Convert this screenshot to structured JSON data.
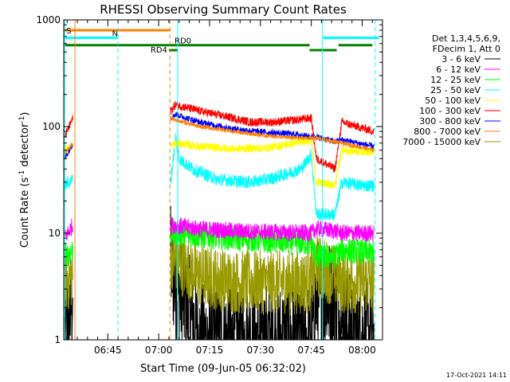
{
  "chart_data": {
    "type": "line",
    "title": "RHESSI Observing Summary Count Rates",
    "xlabel": "Start Time (09-Jun-05 06:32:02)",
    "ylabel_main": "Count Rate (s",
    "ylabel_sup1": "-1",
    "ylabel_mid": " detector",
    "ylabel_sup2": "-1",
    "ylabel_end": ")",
    "y_scale": "log",
    "ylim": [
      1,
      1000
    ],
    "xlim_minutes": [
      0,
      94
    ],
    "x_ticks": [
      {
        "t": 13,
        "label": "06:45"
      },
      {
        "t": 28,
        "label": "07:00"
      },
      {
        "t": 43,
        "label": "07:15"
      },
      {
        "t": 58,
        "label": "07:30"
      },
      {
        "t": 73,
        "label": "07:45"
      },
      {
        "t": 88,
        "label": "08:00"
      }
    ],
    "y_ticks": [
      {
        "v": 1,
        "label": "1"
      },
      {
        "v": 10,
        "label": "10"
      },
      {
        "v": 100,
        "label": "100"
      },
      {
        "v": 1000,
        "label": "1000"
      }
    ],
    "legend_header": [
      "Det 1,3,4,5,6,9,",
      "FDecim 1, Att 0"
    ],
    "series": [
      {
        "name": "3 - 6 keV",
        "color": "#000000",
        "noise": 0.55,
        "points": [
          [
            0.3,
            1.1
          ],
          [
            2.7,
            2.5
          ],
          [
            31.5,
            5.5
          ],
          [
            33,
            3.0
          ],
          [
            36,
            2.2
          ],
          [
            38,
            1.5
          ],
          [
            40,
            1.0
          ],
          [
            73,
            1.0
          ],
          [
            74.5,
            2.5
          ],
          [
            80,
            2.5
          ],
          [
            82,
            1.3
          ],
          [
            91.5,
            1.0
          ]
        ]
      },
      {
        "name": "6 - 12 keV",
        "color": "#ff00ff",
        "noise": 0.08,
        "points": [
          [
            0.3,
            9
          ],
          [
            2.7,
            12
          ],
          [
            31.5,
            12
          ],
          [
            40,
            11
          ],
          [
            50,
            10.5
          ],
          [
            73,
            10
          ],
          [
            74.5,
            11
          ],
          [
            80,
            10.5
          ],
          [
            82,
            10
          ],
          [
            91.5,
            10
          ]
        ]
      },
      {
        "name": "12 - 25 keV",
        "color": "#00ff00",
        "noise": 0.12,
        "points": [
          [
            0.3,
            6
          ],
          [
            2.7,
            7
          ],
          [
            31.5,
            10
          ],
          [
            40,
            9.5
          ],
          [
            50,
            9
          ],
          [
            73,
            8
          ],
          [
            74.5,
            6
          ],
          [
            80,
            6
          ],
          [
            82,
            7
          ],
          [
            91.5,
            6.5
          ]
        ]
      },
      {
        "name": "25 - 50 keV",
        "color": "#00ffff",
        "noise": 0.06,
        "points": [
          [
            0.3,
            28
          ],
          [
            2.7,
            32
          ],
          [
            31.5,
            30
          ],
          [
            33,
            80
          ],
          [
            34,
            50
          ],
          [
            38,
            40
          ],
          [
            45,
            32
          ],
          [
            55,
            30
          ],
          [
            62,
            33
          ],
          [
            70,
            40
          ],
          [
            73,
            55
          ],
          [
            74.5,
            15
          ],
          [
            80,
            15
          ],
          [
            82,
            30
          ],
          [
            88,
            28
          ],
          [
            91.5,
            28
          ]
        ]
      },
      {
        "name": "50 - 100 keV",
        "color": "#ffff00",
        "noise": 0.04,
        "points": [
          [
            0.3,
            60
          ],
          [
            2.7,
            65
          ],
          [
            31.5,
            65
          ],
          [
            33,
            70
          ],
          [
            40,
            65
          ],
          [
            50,
            62
          ],
          [
            60,
            63
          ],
          [
            68,
            70
          ],
          [
            73,
            75
          ],
          [
            74.5,
            30
          ],
          [
            80,
            28
          ],
          [
            82,
            60
          ],
          [
            91.5,
            58
          ]
        ]
      },
      {
        "name": "100 - 300 keV",
        "color": "#ff0000",
        "noise": 0.04,
        "points": [
          [
            0.3,
            80
          ],
          [
            2.7,
            120
          ],
          [
            31.5,
            140
          ],
          [
            33,
            160
          ],
          [
            40,
            140
          ],
          [
            50,
            120
          ],
          [
            55,
            110
          ],
          [
            62,
            110
          ],
          [
            68,
            115
          ],
          [
            73,
            120
          ],
          [
            74.5,
            50
          ],
          [
            80,
            40
          ],
          [
            82,
            110
          ],
          [
            91.5,
            90
          ]
        ]
      },
      {
        "name": "300 - 800 keV",
        "color": "#0000ff",
        "noise": 0.03,
        "points": [
          [
            0.3,
            50
          ],
          [
            2.7,
            70
          ],
          [
            31.5,
            120
          ],
          [
            33,
            130
          ],
          [
            40,
            110
          ],
          [
            50,
            95
          ],
          [
            60,
            88
          ],
          [
            68,
            85
          ],
          [
            73,
            80
          ],
          [
            74.5,
            80
          ],
          [
            80,
            72
          ],
          [
            82,
            75
          ],
          [
            91.5,
            65
          ]
        ]
      },
      {
        "name": "800 - 7000 keV",
        "color": "#ff8000",
        "noise": 0.02,
        "points": [
          [
            0.3,
            55
          ],
          [
            2.7,
            70
          ],
          [
            31.5,
            120
          ],
          [
            33,
            115
          ],
          [
            40,
            100
          ],
          [
            50,
            90
          ],
          [
            60,
            82
          ],
          [
            68,
            78
          ],
          [
            73,
            78
          ],
          [
            74.5,
            78
          ],
          [
            80,
            72
          ],
          [
            82,
            70
          ],
          [
            91.5,
            60
          ]
        ]
      },
      {
        "name": "7000 - 15000 keV",
        "color": "#999900",
        "noise": 0.3,
        "points": [
          [
            0.3,
            3.5
          ],
          [
            2.7,
            4
          ],
          [
            31.5,
            6
          ],
          [
            35,
            5
          ],
          [
            40,
            4
          ],
          [
            50,
            3.5
          ],
          [
            60,
            3.5
          ],
          [
            73,
            3.5
          ],
          [
            74.5,
            5
          ],
          [
            80,
            4
          ],
          [
            82,
            3.5
          ],
          [
            91.5,
            3.5
          ]
        ]
      }
    ],
    "annotations": [
      {
        "label": "S",
        "color": "#ff8000",
        "y": 800,
        "t0": 0.3,
        "t1": 31.5
      },
      {
        "label": "N",
        "color": "#00ffff",
        "y": 680,
        "t0": 0.3,
        "t1": 16
      },
      {
        "label": "RD0",
        "color": "#008000",
        "y": 580,
        "t0": 0.3,
        "t1": 72.5
      },
      {
        "label": "RD4",
        "color": "#008000",
        "y": 520,
        "t0": 31,
        "t1": 33.5
      }
    ],
    "extra_bars": [
      {
        "color": "#00ffff",
        "y": 680,
        "t0": 76.5,
        "t1": 93
      },
      {
        "color": "#008000",
        "y": 520,
        "t0": 72.5,
        "t1": 80.5
      },
      {
        "color": "#008000",
        "y": 580,
        "t0": 81,
        "t1": 91
      }
    ],
    "vlines": [
      {
        "t": 0.3,
        "color": "#00ffff",
        "dash": false
      },
      {
        "t": 3.3,
        "color": "#ff8000",
        "dash": false
      },
      {
        "t": 16,
        "color": "#00ffff",
        "dash": true
      },
      {
        "t": 31.3,
        "color": "#ff8000",
        "dash": true
      },
      {
        "t": 33.6,
        "color": "#00ffff",
        "dash": false
      },
      {
        "t": 76.3,
        "color": "#00ffff",
        "dash": false
      },
      {
        "t": 91.8,
        "color": "#00ffff",
        "dash": true
      }
    ],
    "gaps": [
      [
        2.7,
        31.5
      ]
    ]
  },
  "footer_date": "17-Oct-2021 14:11"
}
